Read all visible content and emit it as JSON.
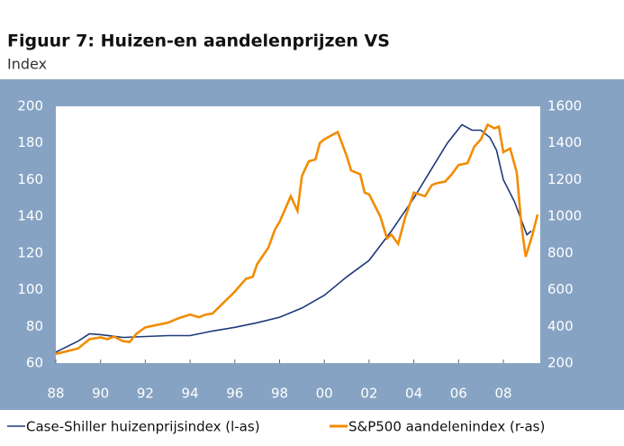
{
  "chart_data": {
    "type": "line",
    "title": "Figuur 7: Huizen-en aandelenprijzen VS",
    "subtitle": "Index",
    "xlim": [
      1988,
      2009.65
    ],
    "xticks": [
      {
        "value": 1988,
        "label": "88"
      },
      {
        "value": 1990,
        "label": "90"
      },
      {
        "value": 1992,
        "label": "92"
      },
      {
        "value": 1994,
        "label": "94"
      },
      {
        "value": 1996,
        "label": "96"
      },
      {
        "value": 1998,
        "label": "98"
      },
      {
        "value": 2000,
        "label": "00"
      },
      {
        "value": 2002,
        "label": "02"
      },
      {
        "value": 2004,
        "label": "04"
      },
      {
        "value": 2006,
        "label": "06"
      },
      {
        "value": 2008,
        "label": "08"
      }
    ],
    "ylim": [
      60,
      200
    ],
    "yticks": [
      60,
      80,
      100,
      120,
      140,
      160,
      180,
      200
    ],
    "y2lim": [
      200,
      1600
    ],
    "y2ticks": [
      200,
      400,
      600,
      800,
      1000,
      1200,
      1400,
      1600
    ],
    "series": [
      {
        "name": "Case-Shiller huizenprijsindex (l-as)",
        "color": "#1f3a7a",
        "x": [
          1988,
          1989,
          1989.5,
          1990,
          1991,
          1992,
          1993,
          1994,
          1995,
          1996,
          1997,
          1998,
          1999,
          2000,
          2001,
          2002,
          2003,
          2004,
          2005,
          2005.5,
          2006.15,
          2006.6,
          2007,
          2007.4,
          2007.7,
          2008,
          2008.5,
          2009.05,
          2009.25
        ],
        "values": [
          66,
          72,
          76,
          75.5,
          74,
          74.5,
          75,
          75,
          77.5,
          79.5,
          82,
          85,
          90,
          97,
          107,
          116,
          132,
          150,
          170,
          180,
          190,
          187,
          187,
          183,
          176,
          160,
          148,
          130,
          132
        ]
      },
      {
        "name": "S&P500 aandelenindex (r-as)",
        "color": "#f28c00",
        "axis": "y2",
        "x": [
          1988,
          1988.5,
          1989,
          1989.5,
          1990,
          1990.3,
          1990.6,
          1991,
          1991.3,
          1991.6,
          1992,
          1993,
          1993.5,
          1994,
          1994.4,
          1994.7,
          1995,
          1995.5,
          1996,
          1996.5,
          1996.8,
          1997,
          1997.5,
          1997.8,
          1998,
          1998.5,
          1998.8,
          1999,
          1999.3,
          1999.6,
          1999.8,
          2000,
          2000.6,
          2001,
          2001.2,
          2001.6,
          2001.8,
          2002,
          2002.5,
          2002.8,
          2003,
          2003.3,
          2003.6,
          2004,
          2004.5,
          2004.8,
          2005,
          2005.4,
          2005.7,
          2006,
          2006.4,
          2006.7,
          2007,
          2007.3,
          2007.6,
          2007.8,
          2008,
          2008.3,
          2008.6,
          2008.8,
          2009,
          2009.3,
          2009.53
        ],
        "values": [
          250,
          265,
          280,
          330,
          340,
          330,
          345,
          320,
          315,
          360,
          395,
          420,
          445,
          465,
          450,
          465,
          470,
          530,
          590,
          660,
          670,
          740,
          830,
          930,
          970,
          1110,
          1030,
          1220,
          1300,
          1310,
          1400,
          1420,
          1460,
          1330,
          1250,
          1230,
          1130,
          1120,
          1000,
          880,
          900,
          850,
          990,
          1130,
          1110,
          1170,
          1180,
          1190,
          1230,
          1280,
          1290,
          1380,
          1420,
          1500,
          1480,
          1490,
          1350,
          1370,
          1240,
          960,
          780,
          900,
          1010
        ]
      }
    ]
  }
}
